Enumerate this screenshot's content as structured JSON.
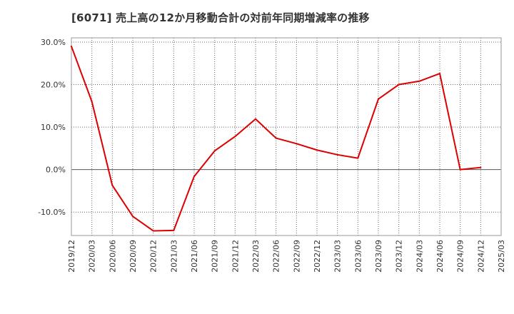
{
  "chart_data": {
    "type": "line",
    "title": "[6071]  売上高の12か月移動合計の対前年同期増減率の推移",
    "xlabel": "",
    "ylabel": "",
    "ylim": [
      -15.5,
      31.0
    ],
    "yticks": [
      30.0,
      20.0,
      10.0,
      0.0,
      -10.0
    ],
    "ytick_labels": [
      "30.0%",
      "20.0%",
      "10.0%",
      "0.0%",
      "-10.0%"
    ],
    "x_tick_labels": [
      "2019/12",
      "2020/03",
      "2020/06",
      "2020/09",
      "2020/12",
      "2021/03",
      "2021/06",
      "2021/09",
      "2021/12",
      "2022/03",
      "2022/06",
      "2022/09",
      "2022/12",
      "2023/03",
      "2023/06",
      "2023/09",
      "2023/12",
      "2024/03",
      "2024/06",
      "2024/09",
      "2024/12",
      "2025/03"
    ],
    "grid": true,
    "legend": "none",
    "colors": {
      "line": "#dd0000",
      "grid": "#666666",
      "axis": "#999999",
      "zero_line": "#555555"
    },
    "series": [
      {
        "name": "対前年同期増減率",
        "x": [
          "2019/12",
          "2020/03",
          "2020/06",
          "2020/09",
          "2020/12",
          "2021/03",
          "2021/06",
          "2021/09",
          "2021/12",
          "2022/03",
          "2022/06",
          "2022/09",
          "2022/12",
          "2023/03",
          "2023/06",
          "2023/09",
          "2023/12",
          "2024/03",
          "2024/06",
          "2024/09",
          "2024/12"
        ],
        "values": [
          29.0,
          16.0,
          -3.7,
          -11.0,
          -14.4,
          -14.3,
          -1.6,
          4.4,
          7.8,
          11.9,
          7.4,
          6.1,
          4.6,
          3.5,
          2.7,
          16.6,
          20.0,
          20.8,
          22.6,
          0.0,
          0.5
        ]
      }
    ]
  }
}
